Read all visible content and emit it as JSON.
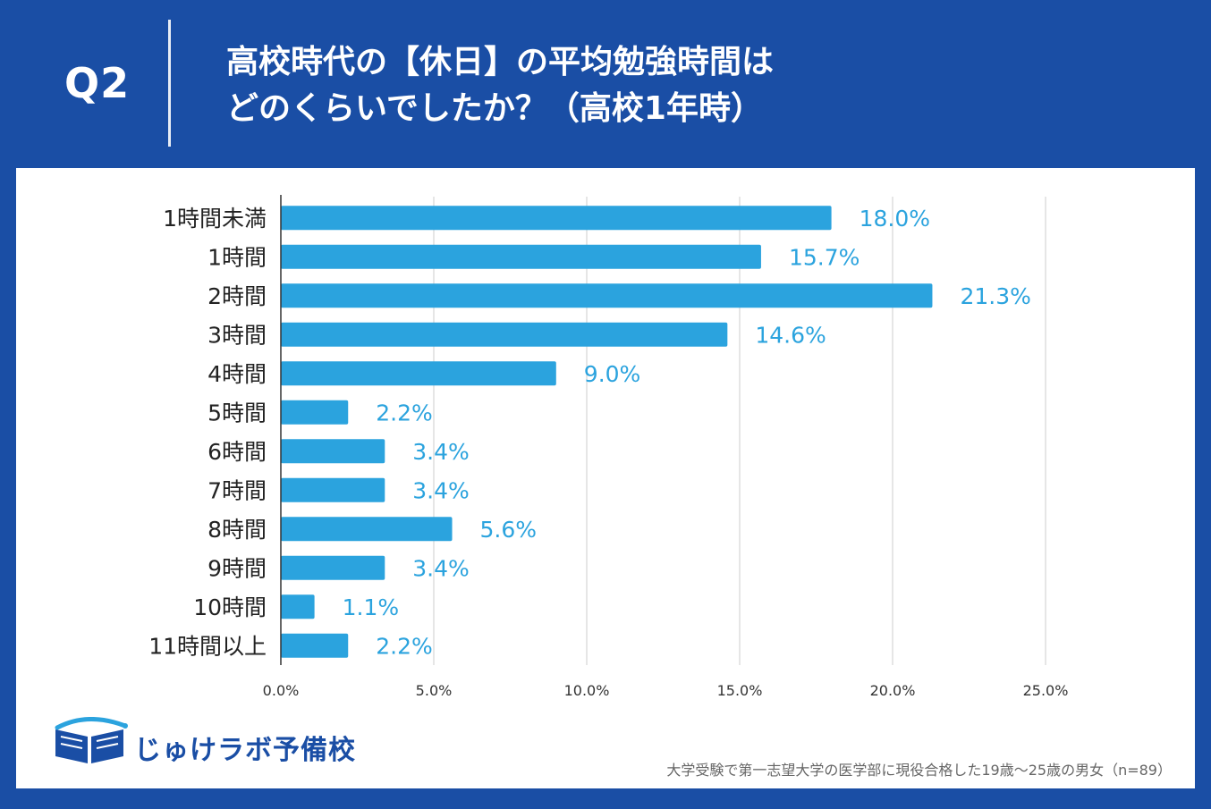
{
  "header": {
    "question_label": "Q2",
    "title_line1": "高校時代の【休日】の平均勉強時間は",
    "title_line2": "どのくらいでしたか？（高校1年時）"
  },
  "colors": {
    "background": "#1a4ea5",
    "bar": "#2ba3de",
    "label": "#2ba3de",
    "grid": "#cccccc",
    "axis": "#333333"
  },
  "chart_data": {
    "type": "bar",
    "orientation": "horizontal",
    "categories": [
      "1時間未満",
      "1時間",
      "2時間",
      "3時間",
      "4時間",
      "5時間",
      "6時間",
      "7時間",
      "8時間",
      "9時間",
      "10時間",
      "11時間以上"
    ],
    "values": [
      18.0,
      15.7,
      21.3,
      14.6,
      9.0,
      2.2,
      3.4,
      3.4,
      5.6,
      3.4,
      1.1,
      2.2
    ],
    "value_labels": [
      "18.0%",
      "15.7%",
      "21.3%",
      "14.6%",
      "9.0%",
      "2.2%",
      "3.4%",
      "3.4%",
      "5.6%",
      "3.4%",
      "1.1%",
      "2.2%"
    ],
    "xlim": [
      0,
      25
    ],
    "xticks": [
      0,
      5,
      10,
      15,
      20,
      25
    ],
    "xtick_labels": [
      "0.0%",
      "5.0%",
      "10.0%",
      "15.0%",
      "20.0%",
      "25.0%"
    ],
    "grid": true,
    "unit": "%"
  },
  "logo": {
    "text": "じゅけラボ予備校",
    "icon": "open-book-icon"
  },
  "footnote": "大学受験で第一志望大学の医学部に現役合格した19歳〜25歳の男女（n=89）"
}
